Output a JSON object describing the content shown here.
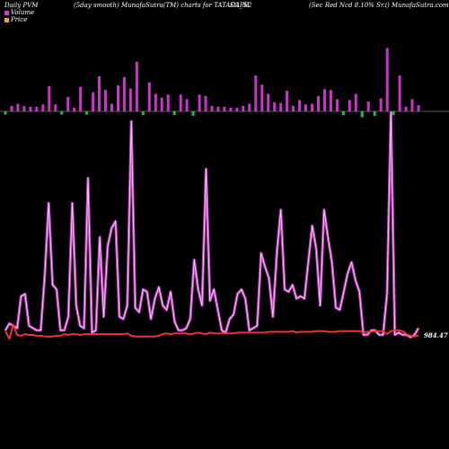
{
  "header": {
    "left": "Daily PVM",
    "center": "(5day smooth) MunafaSutra(TM) charts for TATACAPH",
    "symbol_suffix": "SG_N2",
    "right": "(Sec Red Ncd 8.10% Sr.i) MunafaSutra.com"
  },
  "legend": {
    "volume": "Volume",
    "price": "Price"
  },
  "colors": {
    "background": "#000000",
    "volume_up": "#cc33cc",
    "volume_down": "#22bb44",
    "volume_line": "#cc44cc",
    "price_line": "#ee3333",
    "baseline": "#777777",
    "legend_volume": "#cc44cc",
    "legend_price": "#ff9966"
  },
  "chart_data": {
    "type": "bar",
    "last_price_label": "984.47",
    "volume_bars": [
      {
        "v": 0.05,
        "up": false
      },
      {
        "v": 0.07,
        "up": true
      },
      {
        "v": 0.1,
        "up": true
      },
      {
        "v": 0.07,
        "up": true
      },
      {
        "v": 0.06,
        "up": true
      },
      {
        "v": 0.06,
        "up": true
      },
      {
        "v": 0.09,
        "up": true
      },
      {
        "v": 0.33,
        "up": true
      },
      {
        "v": 0.09,
        "up": true
      },
      {
        "v": 0.05,
        "up": false
      },
      {
        "v": 0.19,
        "up": true
      },
      {
        "v": 0.05,
        "up": true
      },
      {
        "v": 0.32,
        "up": true
      },
      {
        "v": 0.05,
        "up": false
      },
      {
        "v": 0.25,
        "up": true
      },
      {
        "v": 0.46,
        "up": true
      },
      {
        "v": 0.28,
        "up": true
      },
      {
        "v": 0.1,
        "up": true
      },
      {
        "v": 0.34,
        "up": true
      },
      {
        "v": 0.45,
        "up": true
      },
      {
        "v": 0.3,
        "up": true
      },
      {
        "v": 0.65,
        "up": true
      },
      {
        "v": 0.06,
        "up": false
      },
      {
        "v": 0.38,
        "up": true
      },
      {
        "v": 0.23,
        "up": true
      },
      {
        "v": 0.18,
        "up": true
      },
      {
        "v": 0.22,
        "up": true
      },
      {
        "v": 0.06,
        "up": false
      },
      {
        "v": 0.22,
        "up": true
      },
      {
        "v": 0.16,
        "up": true
      },
      {
        "v": 0.07,
        "up": false
      },
      {
        "v": 0.22,
        "up": true
      },
      {
        "v": 0.2,
        "up": true
      },
      {
        "v": 0.07,
        "up": true
      },
      {
        "v": 0.06,
        "up": true
      },
      {
        "v": 0.06,
        "up": true
      },
      {
        "v": 0.05,
        "up": true
      },
      {
        "v": 0.05,
        "up": true
      },
      {
        "v": 0.07,
        "up": true
      },
      {
        "v": 0.1,
        "up": true
      },
      {
        "v": 0.47,
        "up": true
      },
      {
        "v": 0.35,
        "up": true
      },
      {
        "v": 0.23,
        "up": true
      },
      {
        "v": 0.12,
        "up": true
      },
      {
        "v": 0.11,
        "up": true
      },
      {
        "v": 0.27,
        "up": true
      },
      {
        "v": 0.07,
        "up": true
      },
      {
        "v": 0.15,
        "up": true
      },
      {
        "v": 0.09,
        "up": true
      },
      {
        "v": 0.1,
        "up": true
      },
      {
        "v": 0.2,
        "up": true
      },
      {
        "v": 0.29,
        "up": true
      },
      {
        "v": 0.28,
        "up": true
      },
      {
        "v": 0.16,
        "up": true
      },
      {
        "v": 0.06,
        "up": false
      },
      {
        "v": 0.15,
        "up": true
      },
      {
        "v": 0.23,
        "up": true
      },
      {
        "v": 0.09,
        "up": false
      },
      {
        "v": 0.13,
        "up": true
      },
      {
        "v": 0.07,
        "up": false
      },
      {
        "v": 0.17,
        "up": true
      },
      {
        "v": 0.83,
        "up": true
      },
      {
        "v": 0.06,
        "up": false
      },
      {
        "v": 0.47,
        "up": true
      },
      {
        "v": 0.06,
        "up": true
      },
      {
        "v": 0.16,
        "up": true
      },
      {
        "v": 0.08,
        "up": true
      }
    ],
    "volume_smooth": [
      0.04,
      0.07,
      0.06,
      0.05,
      0.19,
      0.2,
      0.06,
      0.05,
      0.04,
      0.04,
      0.28,
      0.6,
      0.24,
      0.22,
      0.04,
      0.04,
      0.1,
      0.6,
      0.15,
      0.06,
      0.05,
      0.71,
      0.03,
      0.04,
      0.45,
      0.1,
      0.41,
      0.49,
      0.52,
      0.1,
      0.09,
      0.15,
      0.96,
      0.14,
      0.12,
      0.22,
      0.21,
      0.09,
      0.18,
      0.23,
      0.15,
      0.13,
      0.21,
      0.08,
      0.04,
      0.04,
      0.05,
      0.09,
      0.35,
      0.22,
      0.15,
      0.75,
      0.17,
      0.22,
      0.13,
      0.04,
      0.03,
      0.09,
      0.11,
      0.2,
      0.22,
      0.18,
      0.04,
      0.05,
      0.06,
      0.38,
      0.32,
      0.27,
      0.1,
      0.38,
      0.57,
      0.22,
      0.21,
      0.24,
      0.18,
      0.19,
      0.18,
      0.34,
      0.5,
      0.4,
      0.15,
      0.57,
      0.45,
      0.34,
      0.14,
      0.13,
      0.21,
      0.29,
      0.34,
      0.26,
      0.21,
      0.02,
      0.02,
      0.04,
      0.04,
      0.02,
      0.02,
      0.2,
      1.0,
      0.02,
      0.03,
      0.02,
      0.02,
      0.01,
      0.02,
      0.05
    ],
    "price": [
      990,
      980,
      998,
      985,
      984,
      986,
      985,
      985,
      984,
      984,
      983,
      983,
      983,
      984,
      984,
      986,
      985,
      986,
      986,
      985,
      986,
      986,
      986,
      986,
      986,
      986,
      986,
      986,
      986,
      986,
      986,
      987,
      984,
      983,
      983,
      983,
      983,
      983,
      983,
      984,
      986,
      987,
      986,
      987,
      987,
      987,
      987,
      986,
      987,
      988,
      987,
      986,
      988,
      987,
      987,
      987,
      987,
      987,
      987,
      988,
      988,
      988,
      988,
      988,
      988,
      988,
      988,
      989,
      989,
      989,
      989,
      989,
      989,
      990,
      988,
      989,
      989,
      989,
      989,
      990,
      990,
      990,
      989,
      989,
      989,
      990,
      990,
      990,
      990,
      990,
      990,
      988,
      989,
      989,
      990,
      990,
      990,
      986,
      990,
      991,
      991,
      990,
      986,
      984,
      983,
      984.47
    ],
    "price_range": [
      970,
      1000
    ]
  }
}
